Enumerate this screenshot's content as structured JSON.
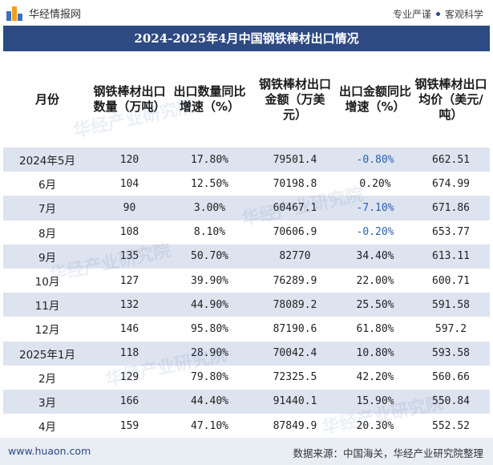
{
  "brand": {
    "logo_text": "华经情报网",
    "slogan_left": "专业严谨",
    "slogan_right": "客观科学",
    "brand_colors": {
      "blue": "#3a6fc4",
      "orange": "#f0a020",
      "title_bar": "#2d4a82"
    }
  },
  "title": "2024-2025年4月中国钢铁棒材出口情况",
  "table": {
    "columns": [
      "月份",
      "钢铁棒材出口数量（万吨）",
      "出口数量同比增速（%）",
      "钢铁棒材出口金额（万美元）",
      "出口金额同比增速（%）",
      "钢铁棒材出口均价（美元/吨）"
    ],
    "rows": [
      {
        "month": "2024年5月",
        "qty": "120",
        "qty_yoy": "17.80%",
        "amount": "79501.4",
        "amount_yoy": "-0.80%",
        "price": "662.51"
      },
      {
        "month": "6月",
        "qty": "104",
        "qty_yoy": "12.50%",
        "amount": "70198.8",
        "amount_yoy": "0.20%",
        "price": "674.99"
      },
      {
        "month": "7月",
        "qty": "90",
        "qty_yoy": "3.00%",
        "amount": "60467.1",
        "amount_yoy": "-7.10%",
        "price": "671.86"
      },
      {
        "month": "8月",
        "qty": "108",
        "qty_yoy": "8.10%",
        "amount": "70606.9",
        "amount_yoy": "-0.20%",
        "price": "653.77"
      },
      {
        "month": "9月",
        "qty": "135",
        "qty_yoy": "50.70%",
        "amount": "82770",
        "amount_yoy": "34.40%",
        "price": "613.11"
      },
      {
        "month": "10月",
        "qty": "127",
        "qty_yoy": "39.90%",
        "amount": "76289.9",
        "amount_yoy": "22.00%",
        "price": "600.71"
      },
      {
        "month": "11月",
        "qty": "132",
        "qty_yoy": "44.90%",
        "amount": "78089.2",
        "amount_yoy": "25.50%",
        "price": "591.58"
      },
      {
        "month": "12月",
        "qty": "146",
        "qty_yoy": "95.80%",
        "amount": "87190.6",
        "amount_yoy": "61.80%",
        "price": "597.2"
      },
      {
        "month": "2025年1月",
        "qty": "118",
        "qty_yoy": "28.90%",
        "amount": "70042.4",
        "amount_yoy": "10.80%",
        "price": "593.58"
      },
      {
        "month": "2月",
        "qty": "129",
        "qty_yoy": "79.80%",
        "amount": "72325.5",
        "amount_yoy": "42.20%",
        "price": "560.66"
      },
      {
        "month": "3月",
        "qty": "166",
        "qty_yoy": "44.40%",
        "amount": "91440.1",
        "amount_yoy": "15.90%",
        "price": "550.84"
      },
      {
        "month": "4月",
        "qty": "159",
        "qty_yoy": "47.10%",
        "amount": "87849.9",
        "amount_yoy": "20.30%",
        "price": "552.52"
      }
    ]
  },
  "watermark_text": "华经产业研究院",
  "footer": {
    "url": "www.huaon.com",
    "source": "数据来源：中国海关，华经产业研究院整理"
  }
}
